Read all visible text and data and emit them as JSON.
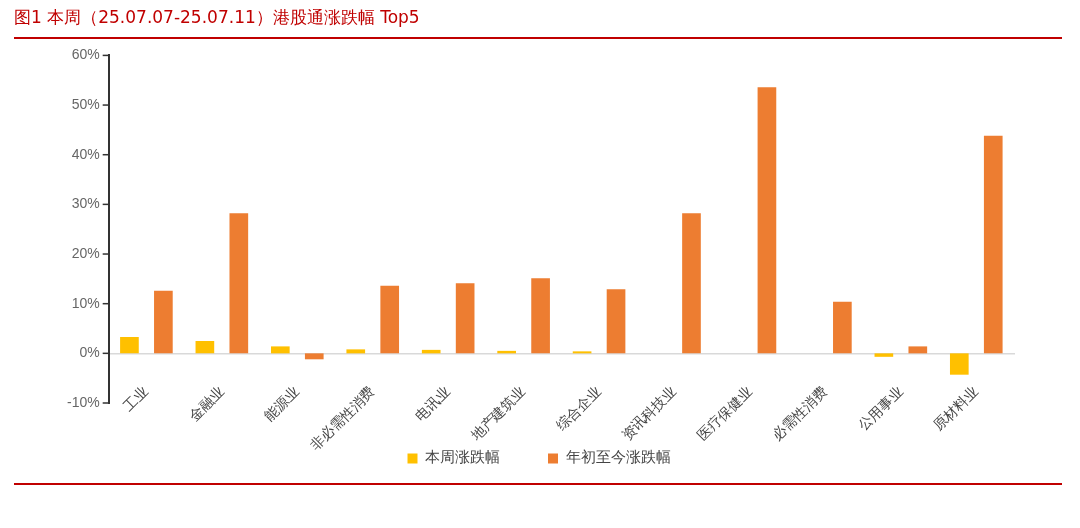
{
  "chart_data": {
    "type": "bar",
    "title": "图1  本周（25.07.07-25.07.11）港股通涨跌幅 Top5",
    "categories": [
      "工业",
      "金融业",
      "能源业",
      "非必需性消费",
      "电讯业",
      "地产建筑业",
      "综合企业",
      "资讯科技业",
      "医疗保健业",
      "必需性消费",
      "公用事业",
      "原材料业"
    ],
    "series": [
      {
        "name": "本周涨跌幅",
        "color": "#ffc000",
        "values": [
          3.3,
          2.5,
          1.4,
          0.8,
          0.7,
          0.5,
          0.4,
          0,
          0,
          0,
          -0.7,
          -4.3
        ]
      },
      {
        "name": "年初至今涨跌幅",
        "color": "#ed7d31",
        "values": [
          12.6,
          28.2,
          -1.2,
          13.6,
          14.1,
          15.1,
          12.9,
          28.2,
          53.6,
          10.4,
          1.4,
          43.8
        ]
      }
    ],
    "ylim": [
      -10,
      60
    ],
    "yticks": [
      {
        "value": -10,
        "label": "-10%"
      },
      {
        "value": 0,
        "label": "0%"
      },
      {
        "value": 10,
        "label": "10%"
      },
      {
        "value": 20,
        "label": "20%"
      },
      {
        "value": 30,
        "label": "30%"
      },
      {
        "value": 40,
        "label": "40%"
      },
      {
        "value": 50,
        "label": "50%"
      },
      {
        "value": 60,
        "label": "60%"
      }
    ],
    "legend": "bottom"
  }
}
